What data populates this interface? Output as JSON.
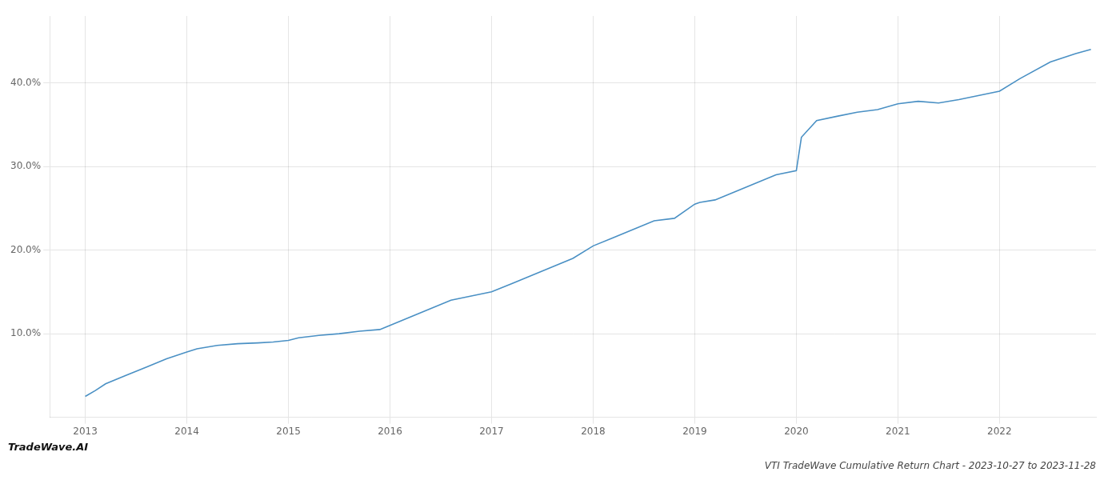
{
  "chart_data": {
    "type": "line",
    "title": "VTI TradeWave Cumulative Return Chart - 2023-10-27 to 2023-11-28",
    "annotations": [
      "TradeWave.AI"
    ],
    "color": "#4a90c4",
    "grid": true,
    "x": [
      2013.0,
      2013.1,
      2013.2,
      2013.4,
      2013.6,
      2013.8,
      2014.0,
      2014.1,
      2014.3,
      2014.5,
      2014.7,
      2014.85,
      2015.0,
      2015.1,
      2015.3,
      2015.5,
      2015.7,
      2015.9,
      2016.0,
      2016.2,
      2016.4,
      2016.6,
      2016.8,
      2017.0,
      2017.2,
      2017.4,
      2017.6,
      2017.8,
      2018.0,
      2018.2,
      2018.4,
      2018.6,
      2018.8,
      2019.0,
      2019.05,
      2019.2,
      2019.4,
      2019.6,
      2019.8,
      2020.0,
      2020.05,
      2020.2,
      2020.4,
      2020.6,
      2020.8,
      2021.0,
      2021.2,
      2021.4,
      2021.6,
      2021.8,
      2022.0,
      2022.2,
      2022.5,
      2022.75,
      2022.9
    ],
    "values": [
      2.5,
      3.2,
      4.0,
      5.0,
      6.0,
      7.0,
      7.8,
      8.2,
      8.6,
      8.8,
      8.9,
      9.0,
      9.2,
      9.5,
      9.8,
      10.0,
      10.3,
      10.5,
      11.0,
      12.0,
      13.0,
      14.0,
      14.5,
      15.0,
      16.0,
      17.0,
      18.0,
      19.0,
      20.5,
      21.5,
      22.5,
      23.5,
      23.8,
      25.5,
      25.7,
      26.0,
      27.0,
      28.0,
      29.0,
      29.5,
      33.5,
      35.5,
      36.0,
      36.5,
      36.8,
      37.5,
      37.8,
      37.6,
      38.0,
      38.5,
      39.0,
      40.5,
      42.5,
      43.5,
      44.0
    ],
    "xlim": [
      2012.65,
      2022.95
    ],
    "xticks": [
      2013,
      2014,
      2015,
      2016,
      2017,
      2018,
      2019,
      2020,
      2021,
      2022
    ],
    "ylim": [
      0,
      48
    ],
    "yticks": [
      {
        "value": 10.0,
        "label": "10.0%"
      },
      {
        "value": 20.0,
        "label": "20.0%"
      },
      {
        "value": 30.0,
        "label": "30.0%"
      },
      {
        "value": 40.0,
        "label": "40.0%"
      }
    ]
  }
}
